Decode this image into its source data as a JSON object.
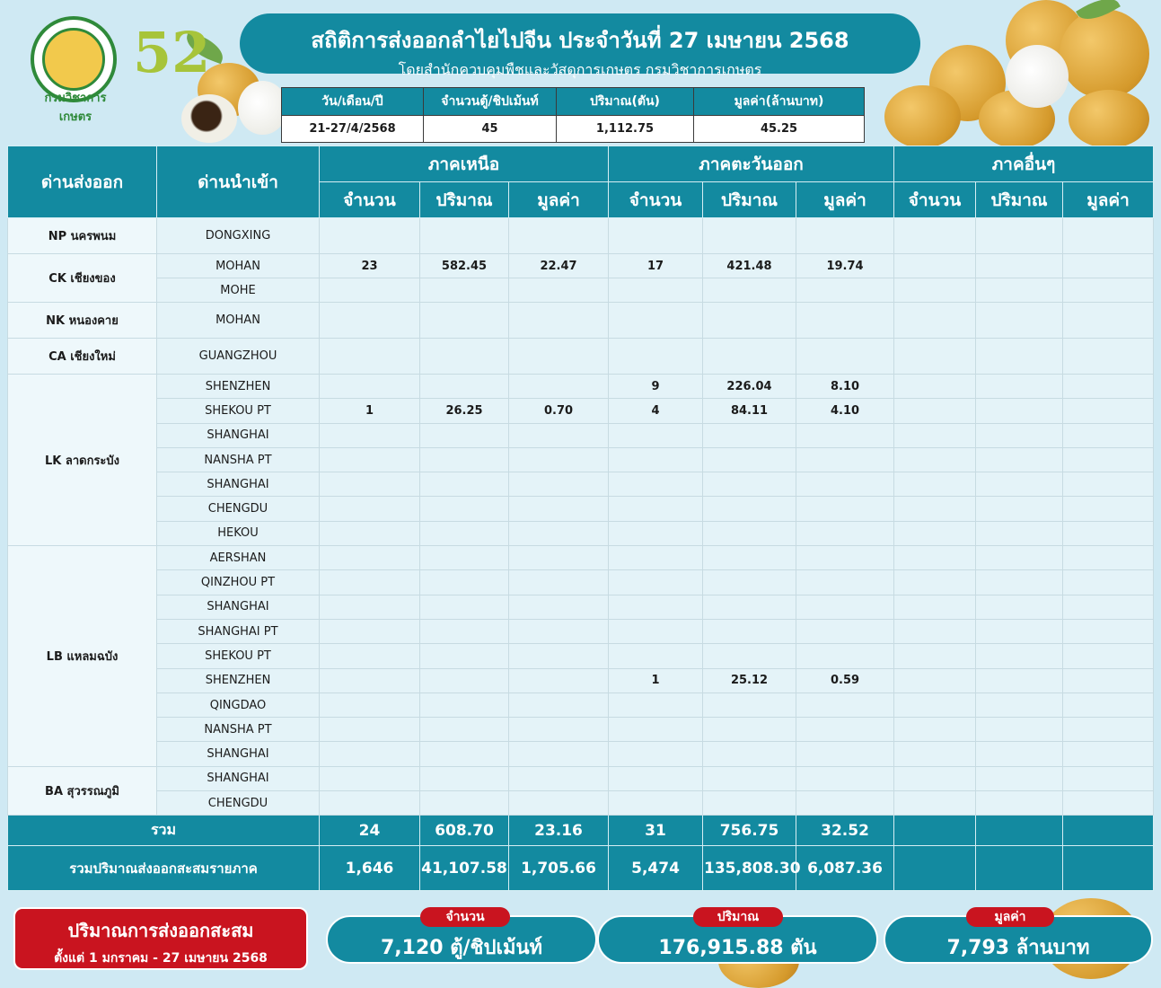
{
  "logo_text": "กรมวิชาการเกษตร",
  "badge_text": "52",
  "title": "สถิติการส่งออกลำไยไปจีน ประจำวันที่ 27 เมษายน 2568",
  "subtitle": "โดยสำนักควบคุมพืชและวัสดุการเกษตร กรมวิชาการเกษตร",
  "summary": {
    "headers": [
      "วัน/เดือน/ปี",
      "จำนวนตู้/ชิปเม้นท์",
      "ปริมาณ(ตัน)",
      "มูลค่า(ล้านบาท)"
    ],
    "values": [
      "21-27/4/2568",
      "45",
      "1,112.75",
      "45.25"
    ]
  },
  "table": {
    "col_export": "ด่านส่งออก",
    "col_import": "ด่านนำเข้า",
    "regions": [
      "ภาคเหนือ",
      "ภาคตะวันออก",
      "ภาคอื่นๆ"
    ],
    "sub": [
      "จำนวน",
      "ปริมาณ",
      "มูลค่า"
    ],
    "groups": [
      {
        "name": "NP นครพนม",
        "rows": [
          {
            "port": "DONGXING",
            "v": [
              "",
              "",
              "",
              "",
              "",
              "",
              "",
              "",
              ""
            ]
          }
        ]
      },
      {
        "name": "CK เชียงของ",
        "rows": [
          {
            "port": "MOHAN",
            "v": [
              "23",
              "582.45",
              "22.47",
              "17",
              "421.48",
              "19.74",
              "",
              "",
              ""
            ]
          },
          {
            "port": "MOHE",
            "v": [
              "",
              "",
              "",
              "",
              "",
              "",
              "",
              "",
              ""
            ]
          }
        ]
      },
      {
        "name": "NK หนองคาย",
        "rows": [
          {
            "port": "MOHAN",
            "v": [
              "",
              "",
              "",
              "",
              "",
              "",
              "",
              "",
              ""
            ]
          }
        ]
      },
      {
        "name": "CA เชียงใหม่",
        "rows": [
          {
            "port": "GUANGZHOU",
            "v": [
              "",
              "",
              "",
              "",
              "",
              "",
              "",
              "",
              ""
            ]
          }
        ]
      },
      {
        "name": "LK ลาดกระบัง",
        "rows": [
          {
            "port": "SHENZHEN",
            "v": [
              "",
              "",
              "",
              "9",
              "226.04",
              "8.10",
              "",
              "",
              ""
            ]
          },
          {
            "port": "SHEKOU PT",
            "v": [
              "1",
              "26.25",
              "0.70",
              "4",
              "84.11",
              "4.10",
              "",
              "",
              ""
            ]
          },
          {
            "port": "SHANGHAI",
            "v": [
              "",
              "",
              "",
              "",
              "",
              "",
              "",
              "",
              ""
            ]
          },
          {
            "port": "NANSHA PT",
            "v": [
              "",
              "",
              "",
              "",
              "",
              "",
              "",
              "",
              ""
            ]
          },
          {
            "port": "SHANGHAI",
            "v": [
              "",
              "",
              "",
              "",
              "",
              "",
              "",
              "",
              ""
            ]
          },
          {
            "port": "CHENGDU",
            "v": [
              "",
              "",
              "",
              "",
              "",
              "",
              "",
              "",
              ""
            ]
          },
          {
            "port": "HEKOU",
            "v": [
              "",
              "",
              "",
              "",
              "",
              "",
              "",
              "",
              ""
            ]
          }
        ]
      },
      {
        "name": "LB แหลมฉบัง",
        "rows": [
          {
            "port": "AERSHAN",
            "v": [
              "",
              "",
              "",
              "",
              "",
              "",
              "",
              "",
              ""
            ]
          },
          {
            "port": "QINZHOU PT",
            "v": [
              "",
              "",
              "",
              "",
              "",
              "",
              "",
              "",
              ""
            ]
          },
          {
            "port": "SHANGHAI",
            "v": [
              "",
              "",
              "",
              "",
              "",
              "",
              "",
              "",
              ""
            ]
          },
          {
            "port": "SHANGHAI PT",
            "v": [
              "",
              "",
              "",
              "",
              "",
              "",
              "",
              "",
              ""
            ]
          },
          {
            "port": "SHEKOU PT",
            "v": [
              "",
              "",
              "",
              "",
              "",
              "",
              "",
              "",
              ""
            ]
          },
          {
            "port": "SHENZHEN",
            "v": [
              "",
              "",
              "",
              "1",
              "25.12",
              "0.59",
              "",
              "",
              ""
            ]
          },
          {
            "port": "QINGDAO",
            "v": [
              "",
              "",
              "",
              "",
              "",
              "",
              "",
              "",
              ""
            ]
          },
          {
            "port": "NANSHA PT",
            "v": [
              "",
              "",
              "",
              "",
              "",
              "",
              "",
              "",
              ""
            ]
          },
          {
            "port": "SHANGHAI",
            "v": [
              "",
              "",
              "",
              "",
              "",
              "",
              "",
              "",
              ""
            ]
          }
        ]
      },
      {
        "name": "BA สุวรรณภูมิ",
        "rows": [
          {
            "port": "SHANGHAI",
            "v": [
              "",
              "",
              "",
              "",
              "",
              "",
              "",
              "",
              ""
            ]
          },
          {
            "port": "CHENGDU",
            "v": [
              "",
              "",
              "",
              "",
              "",
              "",
              "",
              "",
              ""
            ]
          }
        ]
      }
    ],
    "total": {
      "label": "รวม",
      "v": [
        "24",
        "608.70",
        "23.16",
        "31",
        "756.75",
        "32.52",
        "",
        "",
        ""
      ]
    },
    "cumulative": {
      "label": "รวมปริมาณส่งออกสะสมรายภาค",
      "v": [
        "1,646",
        "41,107.58",
        "1,705.66",
        "5,474",
        "135,808.30",
        "6,087.36",
        "",
        "",
        ""
      ]
    }
  },
  "bottom": {
    "red_line1": "ปริมาณการส่งออกสะสม",
    "red_line2": "ตั้งแต่ 1 มกราคม  - 27 เมษายน 2568",
    "count_tag": "จำนวน",
    "count_value": "7,120 ตู้/ชิปเม้นท์",
    "volume_tag": "ปริมาณ",
    "volume_value": "176,915.88 ตัน",
    "value_tag": "มูลค่า",
    "value_value": "7,793 ล้านบาท"
  }
}
